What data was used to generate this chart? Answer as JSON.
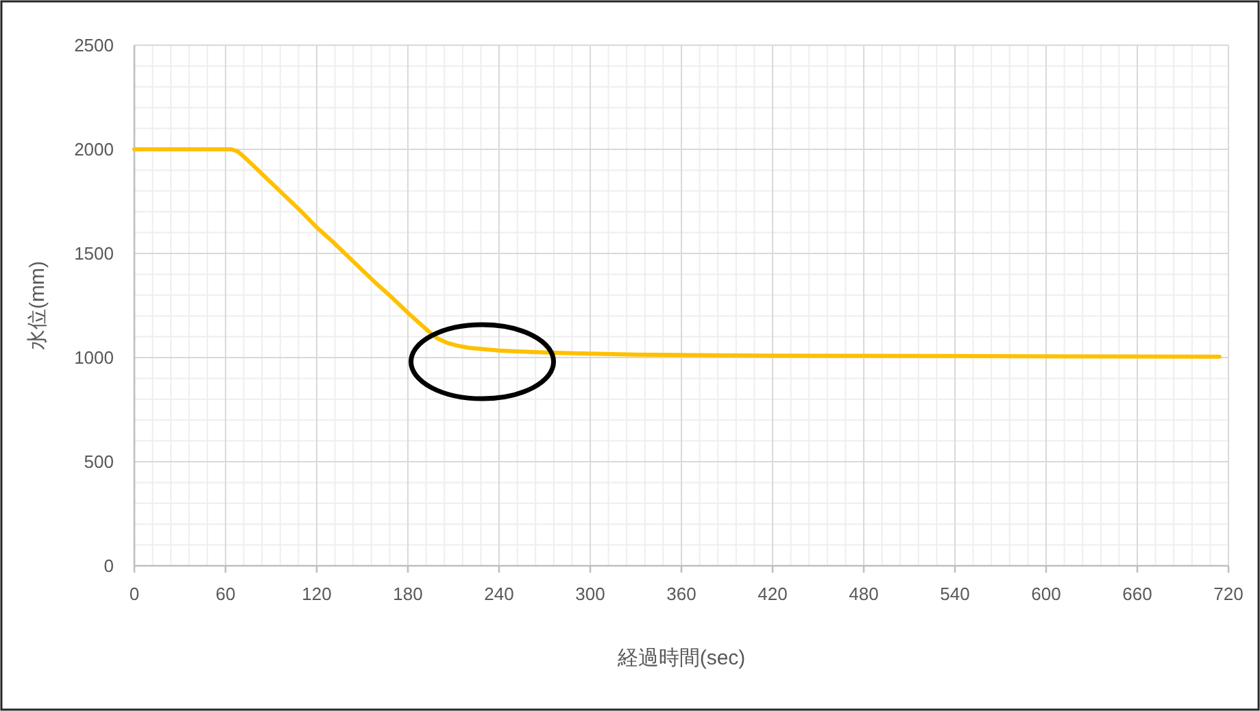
{
  "chart_data": {
    "type": "line",
    "xlabel": "経過時間(sec)",
    "ylabel": "水位(mm)",
    "x": [
      0,
      60,
      64,
      68,
      72,
      80,
      90,
      100,
      110,
      120,
      130,
      140,
      150,
      160,
      170,
      180,
      190,
      196,
      200,
      206,
      212,
      220,
      230,
      240,
      260,
      280,
      300,
      330,
      360,
      420,
      480,
      540,
      600,
      660,
      714
    ],
    "series": [
      {
        "color": "#ffc000",
        "values": [
          2000,
          2000,
          2000,
          1990,
          1965,
          1910,
          1840,
          1770,
          1700,
          1625,
          1560,
          1490,
          1420,
          1350,
          1285,
          1215,
          1150,
          1110,
          1090,
          1070,
          1058,
          1047,
          1040,
          1034,
          1027,
          1022,
          1019,
          1014,
          1012,
          1009,
          1008,
          1007,
          1006,
          1005,
          1004
        ]
      }
    ],
    "xlim": [
      0,
      720
    ],
    "xticks": [
      0,
      60,
      120,
      180,
      240,
      300,
      360,
      420,
      480,
      540,
      600,
      660,
      720
    ],
    "ylim": [
      0,
      2500
    ],
    "yticks": [
      0,
      500,
      1000,
      1500,
      2000,
      2500
    ],
    "grid": true
  }
}
